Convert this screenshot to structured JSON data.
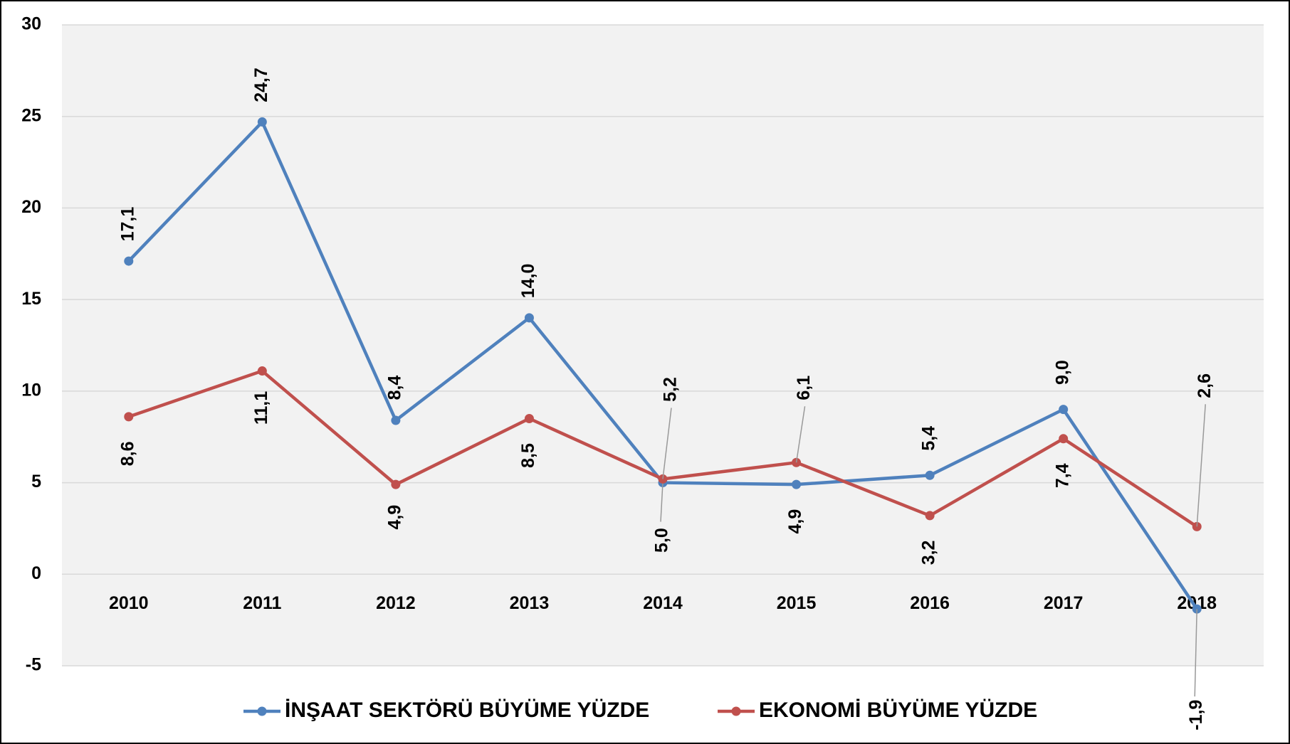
{
  "chart_data": {
    "type": "line",
    "categories": [
      "2010",
      "2011",
      "2012",
      "2013",
      "2014",
      "2015",
      "2016",
      "2017",
      "2018"
    ],
    "series": [
      {
        "name": "İNŞAAT SEKTÖRÜ BÜYÜME YÜZDE",
        "color": "#4f81bd",
        "values": [
          17.1,
          24.7,
          8.4,
          14.0,
          5.0,
          4.9,
          5.4,
          9.0,
          -1.9
        ],
        "value_labels": [
          "17,1",
          "24,7",
          "8,4",
          "14,0",
          "5,0",
          "4,9",
          "5,4",
          "9,0",
          "-1,9"
        ]
      },
      {
        "name": "EKONOMİ BÜYÜME YÜZDE",
        "color": "#c0504d",
        "values": [
          8.6,
          11.1,
          4.9,
          8.5,
          5.2,
          6.1,
          3.2,
          7.4,
          2.6
        ],
        "value_labels": [
          "8,6",
          "11,1",
          "4,9",
          "8,5",
          "5,2",
          "6,1",
          "3,2",
          "7,4",
          "2,6"
        ]
      }
    ],
    "ylim": [
      -5,
      30
    ],
    "yticks": [
      -5,
      0,
      5,
      10,
      15,
      20,
      25,
      30
    ],
    "grid": true,
    "legend": "bottom"
  }
}
